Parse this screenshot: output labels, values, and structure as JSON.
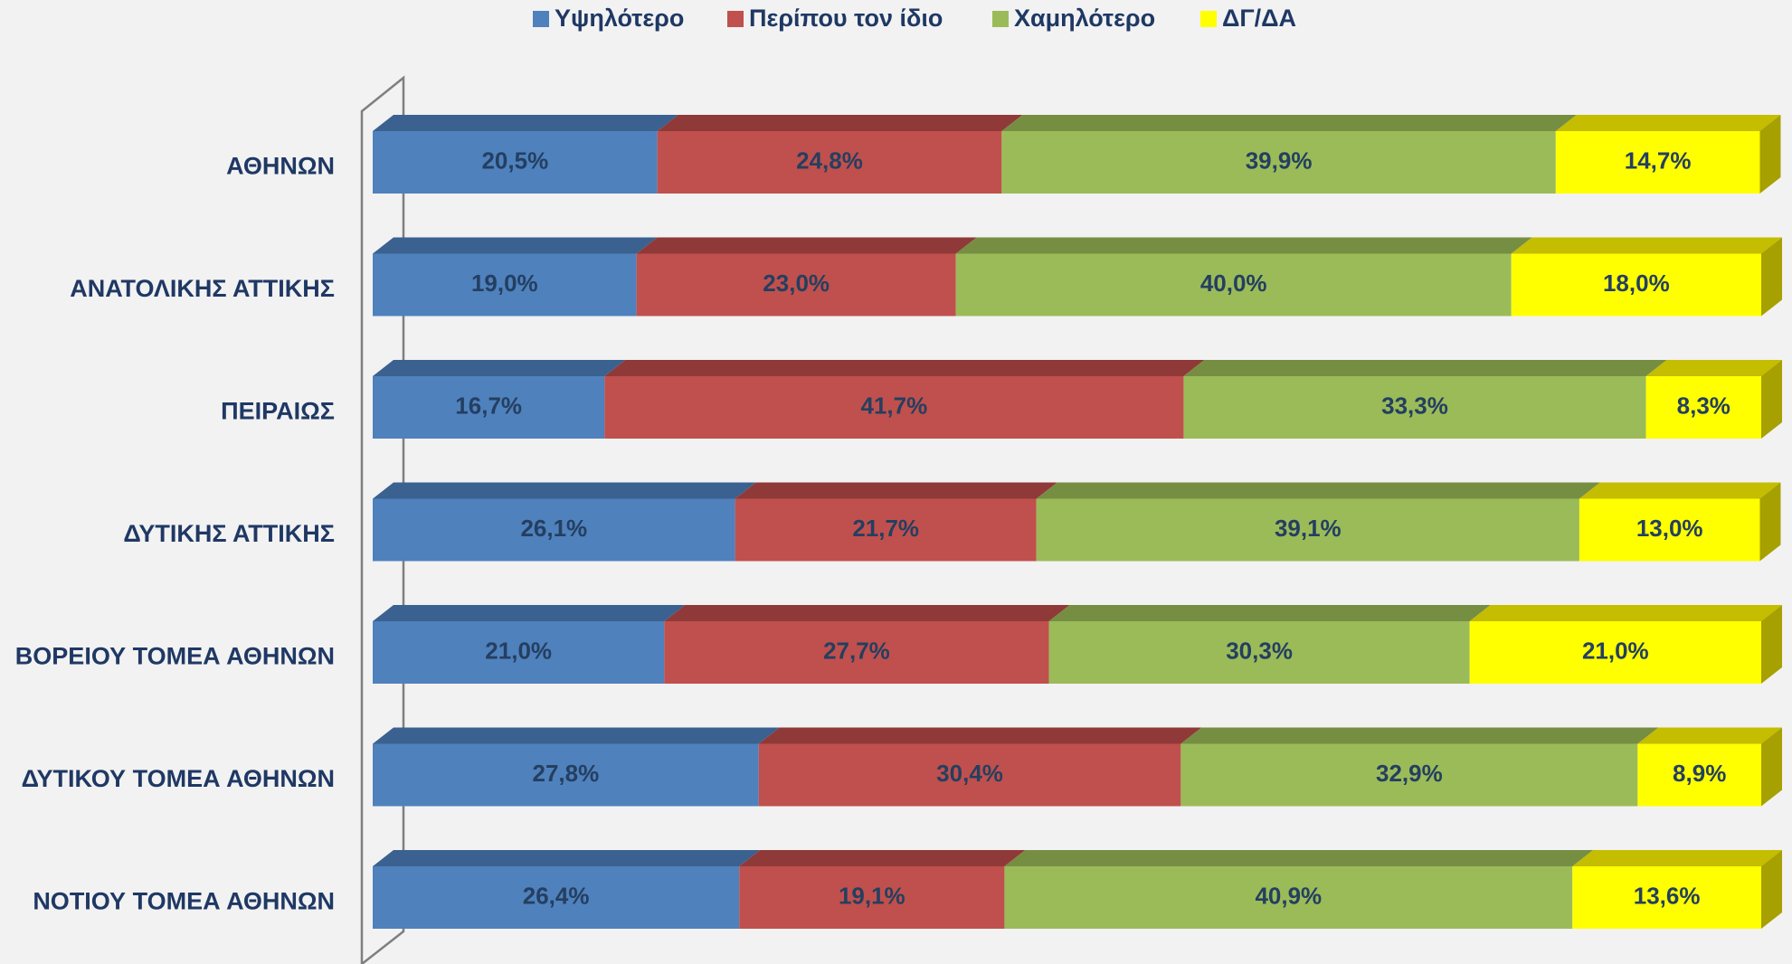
{
  "chart_data": {
    "type": "stacked_bar_horizontal_3d",
    "categories": [
      "ΑΘΗΝΩΝ",
      "ΑΝΑΤΟΛΙΚΗΣ ΑΤΤΙΚΗΣ",
      "ΠΕΙΡΑΙΩΣ",
      "ΔΥΤΙΚΗΣ ΑΤΤΙΚΗΣ",
      "ΒΟΡΕΙΟΥ ΤΟΜΕΑ ΑΘΗΝΩΝ",
      "ΔΥΤΙΚΟΥ ΤΟΜΕΑ ΑΘΗΝΩΝ",
      "ΝΟΤΙΟΥ ΤΟΜΕΑ ΑΘΗΝΩΝ"
    ],
    "xlim": [
      0,
      100
    ],
    "legend": "top",
    "series": [
      {
        "name": "Υψηλότερο",
        "color": "#4f81bd",
        "top_color": "#3b6190",
        "values": [
          20.5,
          19.0,
          16.7,
          26.1,
          21.0,
          27.8,
          26.4
        ],
        "value_labels": [
          "20,5%",
          "19,0%",
          "16,7%",
          "26,1%",
          "21,0%",
          "27,8%",
          "26,4%"
        ]
      },
      {
        "name": "Περίπου τον ίδιο",
        "color": "#c0504d",
        "top_color": "#8f3a38",
        "values": [
          24.8,
          23.0,
          41.7,
          21.7,
          27.7,
          30.4,
          19.1
        ],
        "value_labels": [
          "24,8%",
          "23,0%",
          "41,7%",
          "21,7%",
          "27,7%",
          "30,4%",
          "19,1%"
        ]
      },
      {
        "name": "Χαμηλότερο",
        "color": "#9bbb59",
        "top_color": "#768e42",
        "values": [
          39.9,
          40.0,
          33.3,
          39.1,
          30.3,
          32.9,
          40.9
        ],
        "value_labels": [
          "39,9%",
          "40,0%",
          "33,3%",
          "39,1%",
          "30,3%",
          "32,9%",
          "40,9%"
        ]
      },
      {
        "name": "ΔΓ/ΔΑ",
        "color": "#ffff00",
        "top_color": "#c4bd00",
        "side_color": "#a6a000",
        "values": [
          14.7,
          18.0,
          8.3,
          13.0,
          21.0,
          8.9,
          13.6
        ],
        "value_labels": [
          "14,7%",
          "18,0%",
          "8,3%",
          "13,0%",
          "21,0%",
          "8,9%",
          "13,6%"
        ]
      }
    ]
  }
}
